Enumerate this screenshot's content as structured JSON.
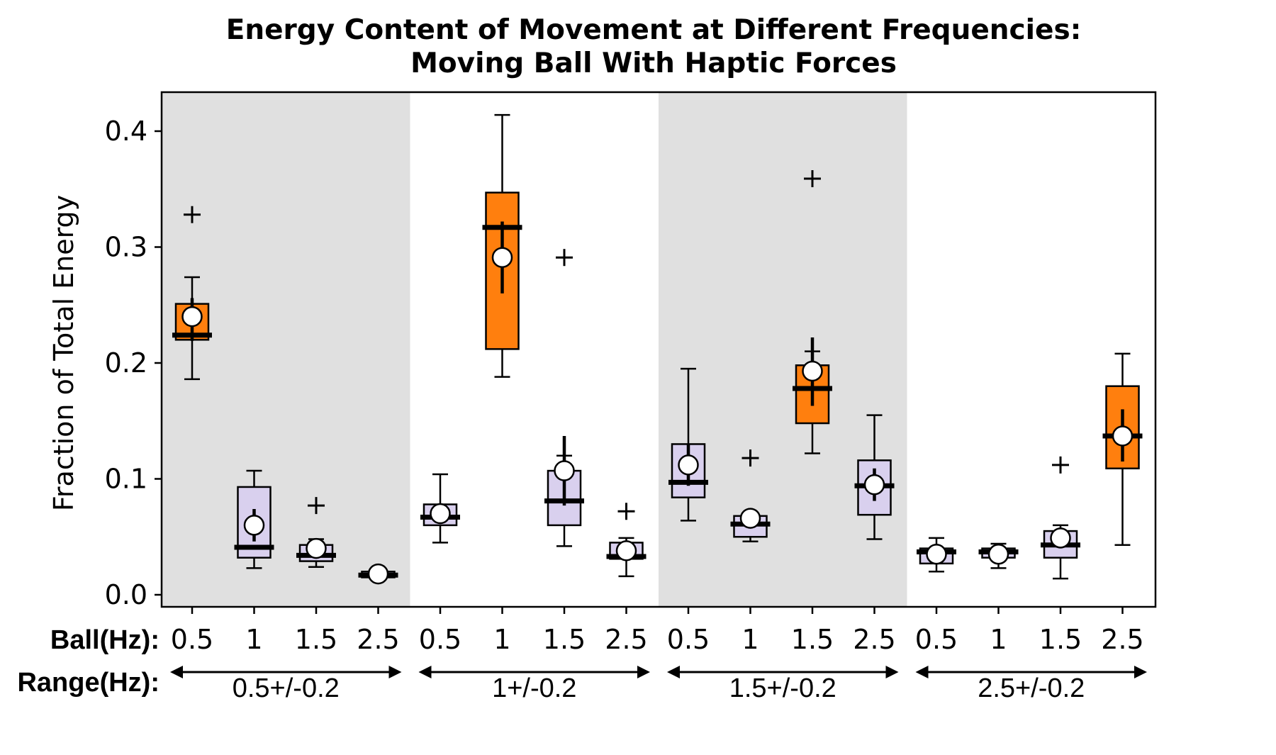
{
  "chart_data": {
    "type": "box",
    "title_line1": "Energy Content of Movement at Different Frequencies:",
    "title_line2": "Moving Ball With Haptic Forces",
    "ylabel": "Fraction of Total Energy",
    "ylim": [
      -0.01,
      0.435
    ],
    "yticks": [
      "0.0",
      "0.1",
      "0.2",
      "0.3",
      "0.4"
    ],
    "ball_row_label": "Ball(Hz):",
    "range_row_label": "Range(Hz):",
    "grid": false,
    "colors": {
      "match": "#ff7f0e",
      "other": "#d9d0ee",
      "shade": "#e0e0e0",
      "edge": "#000000"
    },
    "groups": [
      {
        "range": "0.5+/-0.2",
        "shaded": true
      },
      {
        "range": "1+/-0.2",
        "shaded": false
      },
      {
        "range": "1.5+/-0.2",
        "shaded": true
      },
      {
        "range": "2.5+/-0.2",
        "shaded": false
      }
    ],
    "boxes": [
      {
        "group": 0,
        "ball": "0.5",
        "match": true,
        "whislo": 0.186,
        "q1": 0.22,
        "med": 0.224,
        "q3": 0.251,
        "whishi": 0.274,
        "mean": 0.24,
        "ci": [
          0.219,
          0.256
        ],
        "fliers": [
          0.328
        ]
      },
      {
        "group": 0,
        "ball": "1",
        "match": false,
        "whislo": 0.023,
        "q1": 0.032,
        "med": 0.041,
        "q3": 0.093,
        "whishi": 0.107,
        "mean": 0.06,
        "ci": [
          0.046,
          0.074
        ],
        "fliers": []
      },
      {
        "group": 0,
        "ball": "1.5",
        "match": false,
        "whislo": 0.024,
        "q1": 0.029,
        "med": 0.034,
        "q3": 0.043,
        "whishi": 0.048,
        "mean": 0.04,
        "ci": [
          0.032,
          0.047
        ],
        "fliers": [
          0.077
        ]
      },
      {
        "group": 0,
        "ball": "2.5",
        "match": false,
        "whislo": 0.015,
        "q1": 0.015,
        "med": 0.017,
        "q3": 0.02,
        "whishi": 0.021,
        "mean": 0.018,
        "ci": [
          0.016,
          0.02
        ],
        "fliers": []
      },
      {
        "group": 1,
        "ball": "0.5",
        "match": false,
        "whislo": 0.045,
        "q1": 0.06,
        "med": 0.067,
        "q3": 0.078,
        "whishi": 0.104,
        "mean": 0.07,
        "ci": [
          0.063,
          0.077
        ],
        "fliers": []
      },
      {
        "group": 1,
        "ball": "1",
        "match": true,
        "whislo": 0.188,
        "q1": 0.212,
        "med": 0.317,
        "q3": 0.347,
        "whishi": 0.414,
        "mean": 0.291,
        "ci": [
          0.26,
          0.322
        ],
        "fliers": []
      },
      {
        "group": 1,
        "ball": "1.5",
        "match": false,
        "whislo": 0.042,
        "q1": 0.06,
        "med": 0.081,
        "q3": 0.107,
        "whishi": 0.12,
        "mean": 0.107,
        "ci": [
          0.077,
          0.137
        ],
        "fliers": [
          0.291
        ]
      },
      {
        "group": 1,
        "ball": "2.5",
        "match": false,
        "whislo": 0.016,
        "q1": 0.031,
        "med": 0.033,
        "q3": 0.045,
        "whishi": 0.049,
        "mean": 0.038,
        "ci": [
          0.031,
          0.045
        ],
        "fliers": [
          0.072
        ]
      },
      {
        "group": 2,
        "ball": "0.5",
        "match": false,
        "whislo": 0.064,
        "q1": 0.084,
        "med": 0.097,
        "q3": 0.13,
        "whishi": 0.195,
        "mean": 0.112,
        "ci": [
          0.094,
          0.13
        ],
        "fliers": []
      },
      {
        "group": 2,
        "ball": "1",
        "match": false,
        "whislo": 0.046,
        "q1": 0.05,
        "med": 0.061,
        "q3": 0.068,
        "whishi": 0.071,
        "mean": 0.066,
        "ci": [
          0.06,
          0.072
        ],
        "fliers": [
          0.118
        ]
      },
      {
        "group": 2,
        "ball": "1.5",
        "match": true,
        "whislo": 0.122,
        "q1": 0.148,
        "med": 0.178,
        "q3": 0.198,
        "whishi": 0.21,
        "mean": 0.193,
        "ci": [
          0.163,
          0.222
        ],
        "fliers": [
          0.359
        ]
      },
      {
        "group": 2,
        "ball": "2.5",
        "match": false,
        "whislo": 0.048,
        "q1": 0.069,
        "med": 0.094,
        "q3": 0.116,
        "whishi": 0.155,
        "mean": 0.095,
        "ci": [
          0.081,
          0.109
        ],
        "fliers": []
      },
      {
        "group": 3,
        "ball": "0.5",
        "match": false,
        "whislo": 0.02,
        "q1": 0.027,
        "med": 0.037,
        "q3": 0.04,
        "whishi": 0.049,
        "mean": 0.035,
        "ci": [
          0.03,
          0.04
        ],
        "fliers": []
      },
      {
        "group": 3,
        "ball": "1",
        "match": false,
        "whislo": 0.023,
        "q1": 0.032,
        "med": 0.037,
        "q3": 0.04,
        "whishi": 0.044,
        "mean": 0.035,
        "ci": [
          0.031,
          0.039
        ],
        "fliers": []
      },
      {
        "group": 3,
        "ball": "1.5",
        "match": false,
        "whislo": 0.014,
        "q1": 0.032,
        "med": 0.043,
        "q3": 0.055,
        "whishi": 0.06,
        "mean": 0.049,
        "ci": [
          0.04,
          0.058
        ],
        "fliers": [
          0.112
        ]
      },
      {
        "group": 3,
        "ball": "2.5",
        "match": true,
        "whislo": 0.043,
        "q1": 0.109,
        "med": 0.137,
        "q3": 0.18,
        "whishi": 0.208,
        "mean": 0.137,
        "ci": [
          0.115,
          0.16
        ],
        "fliers": []
      }
    ]
  }
}
